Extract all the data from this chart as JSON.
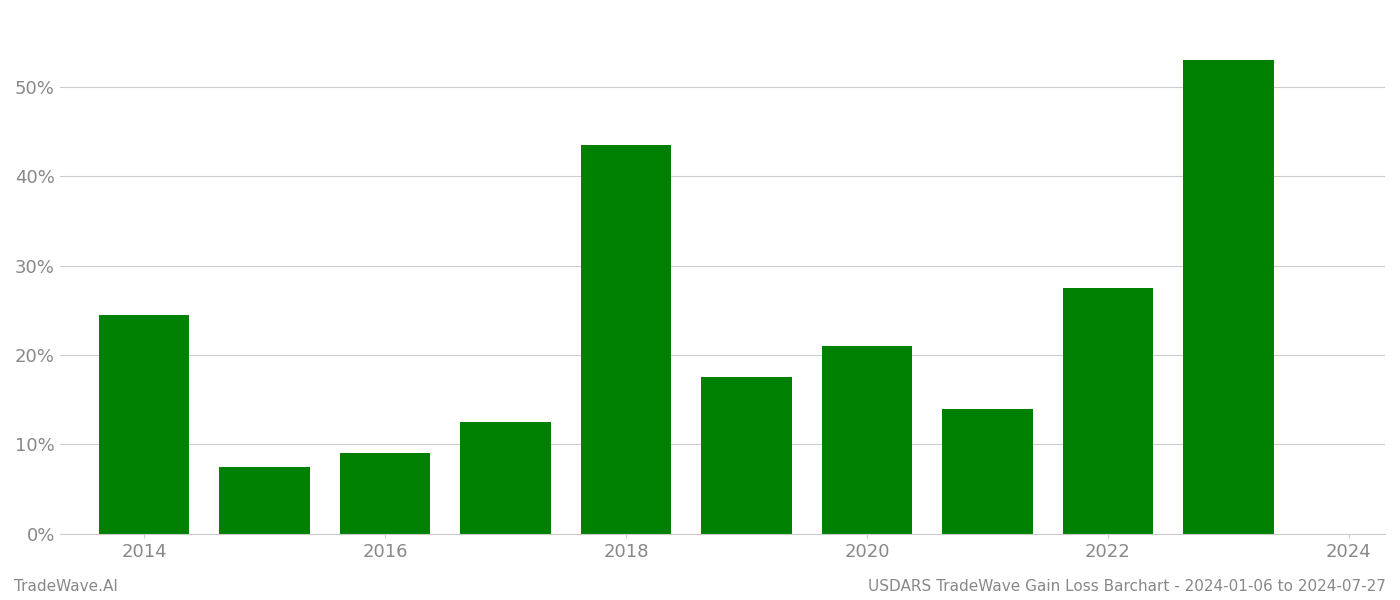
{
  "bar_positions": [
    2013.5,
    2014.5,
    2015.5,
    2016.5,
    2017.5,
    2018.5,
    2019.5,
    2020.5,
    2021.5,
    2022.5
  ],
  "values": [
    0.245,
    0.075,
    0.09,
    0.125,
    0.435,
    0.175,
    0.21,
    0.14,
    0.275,
    0.53
  ],
  "bar_color": "#008000",
  "ylim": [
    0,
    0.58
  ],
  "yticks": [
    0.0,
    0.1,
    0.2,
    0.3,
    0.4,
    0.5
  ],
  "xticks": [
    2013.5,
    2015.5,
    2017.5,
    2019.5,
    2021.5,
    2023.5
  ],
  "xticklabels": [
    "2014",
    "2016",
    "2018",
    "2020",
    "2022",
    "2024"
  ],
  "xlim": [
    2012.8,
    2023.8
  ],
  "grid_color": "#cccccc",
  "footer_left": "TradeWave.AI",
  "footer_right": "USDARS TradeWave Gain Loss Barchart - 2024-01-06 to 2024-07-27",
  "footer_color": "#888888",
  "footer_fontsize": 11,
  "bar_width": 0.75,
  "tick_label_color": "#888888",
  "tick_fontsize": 13
}
